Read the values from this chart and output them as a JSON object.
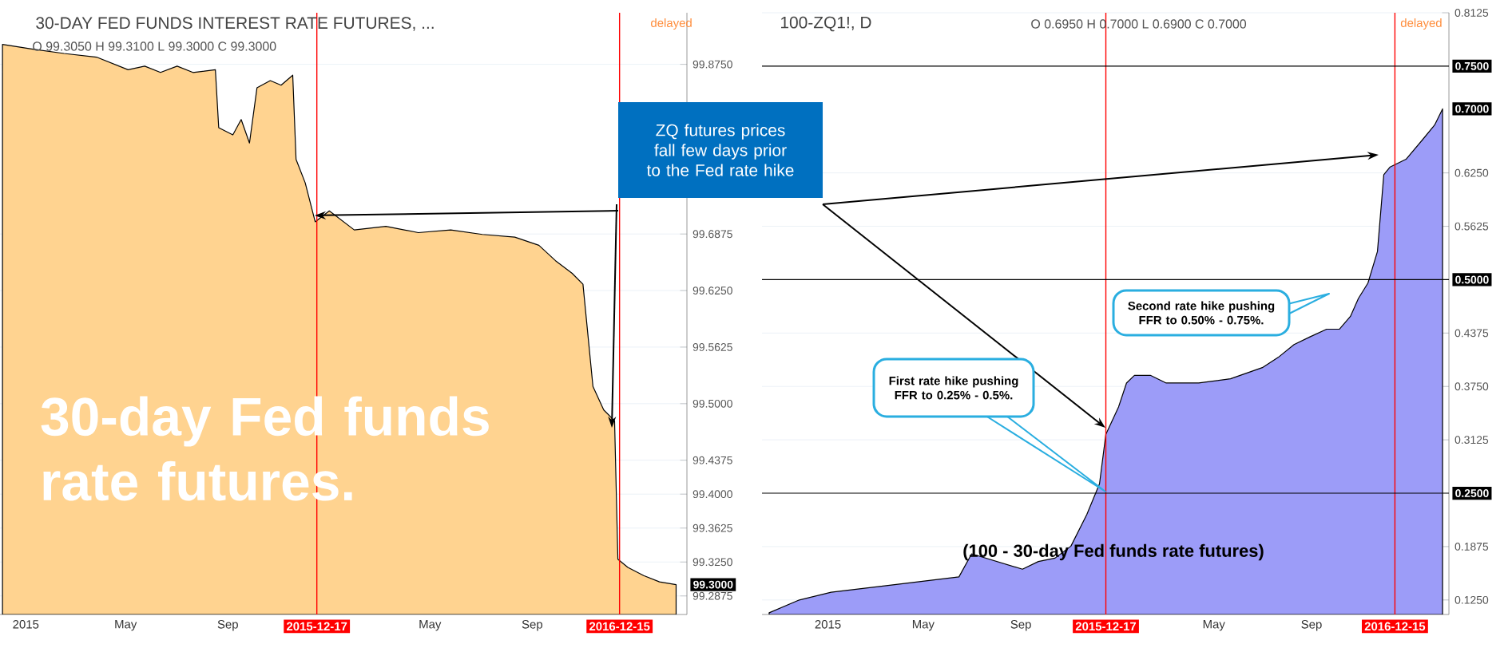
{
  "chart_data": [
    {
      "type": "area",
      "title": "30-DAY FED FUNDS INTEREST RATE FUTURES, ...",
      "color": "#ffd390",
      "x": [
        "2014-12-04",
        "2015-01-08",
        "2015-02-16",
        "2015-03-27",
        "2015-05-04",
        "2015-05-24",
        "2015-06-12",
        "2015-07-02",
        "2015-07-21",
        "2015-08-17",
        "2015-08-21",
        "2015-09-07",
        "2015-09-17",
        "2015-09-27",
        "2015-10-06",
        "2015-10-22",
        "2015-11-04",
        "2015-11-18",
        "2015-11-22",
        "2015-12-03",
        "2015-12-15",
        "2016-01-01",
        "2016-01-31",
        "2016-03-09",
        "2016-04-17",
        "2016-05-26",
        "2016-07-03",
        "2016-08-11",
        "2016-09-09",
        "2016-09-29",
        "2016-10-19",
        "2016-11-01",
        "2016-11-13",
        "2016-11-26",
        "2016-12-09",
        "2016-12-13",
        "2016-12-25",
        "2017-01-13",
        "2017-02-01",
        "2017-02-21"
      ],
      "values": [
        99.897,
        99.892,
        99.887,
        99.883,
        99.869,
        99.873,
        99.866,
        99.873,
        99.866,
        99.869,
        99.805,
        99.797,
        99.814,
        99.788,
        99.849,
        99.857,
        99.852,
        99.863,
        99.77,
        99.744,
        99.701,
        99.713,
        99.692,
        99.696,
        99.689,
        99.692,
        99.687,
        99.684,
        99.675,
        99.658,
        99.644,
        99.632,
        99.519,
        99.493,
        99.481,
        99.328,
        99.319,
        99.31,
        99.303,
        99.3
      ],
      "xlim": [
        "2014-12-01",
        "2017-03-06"
      ],
      "ylim": [
        99.267,
        99.932
      ],
      "xticks": [
        {
          "value": "2015",
          "label": "2015"
        },
        {
          "value": "2015-05",
          "label": "May"
        },
        {
          "value": "2015-09",
          "label": "Sep"
        },
        {
          "value": "2016-05",
          "label": "May"
        },
        {
          "value": "2016-09",
          "label": "Sep"
        }
      ],
      "yticks": [
        {
          "value": 99.2875,
          "label": "99.2875"
        },
        {
          "value": 99.325,
          "label": "99.3250"
        },
        {
          "value": 99.3625,
          "label": "99.3625"
        },
        {
          "value": 99.4,
          "label": "99.4000"
        },
        {
          "value": 99.4375,
          "label": "99.4375"
        },
        {
          "value": 99.5,
          "label": "99.5000"
        },
        {
          "value": 99.5625,
          "label": "99.5625"
        },
        {
          "value": 99.625,
          "label": "99.6250"
        },
        {
          "value": 99.6875,
          "label": "99.6875"
        },
        {
          "value": 99.875,
          "label": "99.8750"
        }
      ],
      "grid": "y",
      "ref_lines": [
        {
          "axis": "x",
          "value": "2015-12-17",
          "label": "2015-12-17",
          "color": "#ff0000"
        },
        {
          "axis": "x",
          "value": "2016-12-15",
          "label": "2016-12-15",
          "color": "#ff0000"
        }
      ],
      "annotations": [
        "O 99.3050 H 99.3100 L 99.3000 C 99.3000",
        "delayed",
        "30-day Fed funds rate futures.",
        "ZQ futures prices fall few days prior to the Fed rate hike",
        {
          "text": "99.3000",
          "x": "2017-02-21",
          "y": 99.3
        }
      ]
    },
    {
      "type": "area",
      "title": "100-ZQ1!, D",
      "color": "#9c9cf8",
      "x": [
        "2014-10-19",
        "2014-11-26",
        "2015-01-05",
        "2015-03-26",
        "2015-06-15",
        "2015-07-01",
        "2015-09-03",
        "2015-09-23",
        "2015-10-14",
        "2015-11-03",
        "2015-11-23",
        "2015-12-09",
        "2015-12-17",
        "2016-01-02",
        "2016-01-12",
        "2016-01-22",
        "2016-02-11",
        "2016-03-02",
        "2016-04-12",
        "2016-05-22",
        "2016-07-01",
        "2016-07-21",
        "2016-08-10",
        "2016-08-30",
        "2016-09-20",
        "2016-10-06",
        "2016-10-20",
        "2016-10-30",
        "2016-11-11",
        "2016-11-23",
        "2016-12-01",
        "2016-12-09",
        "2016-12-29",
        "2017-01-18",
        "2017-02-03",
        "2017-02-13"
      ],
      "values": [
        0.11,
        0.125,
        0.134,
        0.143,
        0.152,
        0.179,
        0.161,
        0.17,
        0.174,
        0.188,
        0.225,
        0.261,
        0.319,
        0.351,
        0.379,
        0.388,
        0.388,
        0.379,
        0.379,
        0.384,
        0.397,
        0.409,
        0.424,
        0.433,
        0.442,
        0.442,
        0.457,
        0.478,
        0.496,
        0.533,
        0.623,
        0.632,
        0.641,
        0.663,
        0.681,
        0.7
      ],
      "xlim": [
        "2014-10-10",
        "2017-02-21"
      ],
      "ylim": [
        0.108,
        0.8125
      ],
      "xticks": [
        {
          "value": "2015",
          "label": "2015"
        },
        {
          "value": "2015-05",
          "label": "May"
        },
        {
          "value": "2015-09",
          "label": "Sep"
        },
        {
          "value": "2016-05",
          "label": "May"
        },
        {
          "value": "2016-09",
          "label": "Sep"
        }
      ],
      "yticks": [
        {
          "value": 0.125,
          "label": "0.1250"
        },
        {
          "value": 0.1875,
          "label": "0.1875"
        },
        {
          "value": 0.3125,
          "label": "0.3125"
        },
        {
          "value": 0.375,
          "label": "0.3750"
        },
        {
          "value": 0.4375,
          "label": "0.4375"
        },
        {
          "value": 0.5625,
          "label": "0.5625"
        },
        {
          "value": 0.625,
          "label": "0.6250"
        },
        {
          "value": 0.8125,
          "label": "0.8125"
        }
      ],
      "grid": "y",
      "ref_lines": [
        {
          "axis": "x",
          "value": "2015-12-17",
          "label": "2015-12-17",
          "color": "#ff0000"
        },
        {
          "axis": "x",
          "value": "2016-12-15",
          "label": "2016-12-15",
          "color": "#ff0000"
        },
        {
          "axis": "y",
          "value": 0.25,
          "label": "0.2500",
          "color": "#000000"
        },
        {
          "axis": "y",
          "value": 0.5,
          "label": "0.5000",
          "color": "#000000"
        },
        {
          "axis": "y",
          "value": 0.75,
          "label": "0.7500",
          "color": "#000000"
        }
      ],
      "annotations": [
        "O 0.6950 H 0.7000 L 0.6900 C 0.7000",
        "delayed",
        "(100 - 30-day Fed funds rate futures)",
        "First rate hike pushing FFR to 0.25% - 0.5%.",
        "Second rate hike pushing FFR to 0.50% - 0.75%.",
        {
          "text": "0.7000",
          "x": "2017-02-13",
          "y": 0.7
        }
      ]
    }
  ]
}
